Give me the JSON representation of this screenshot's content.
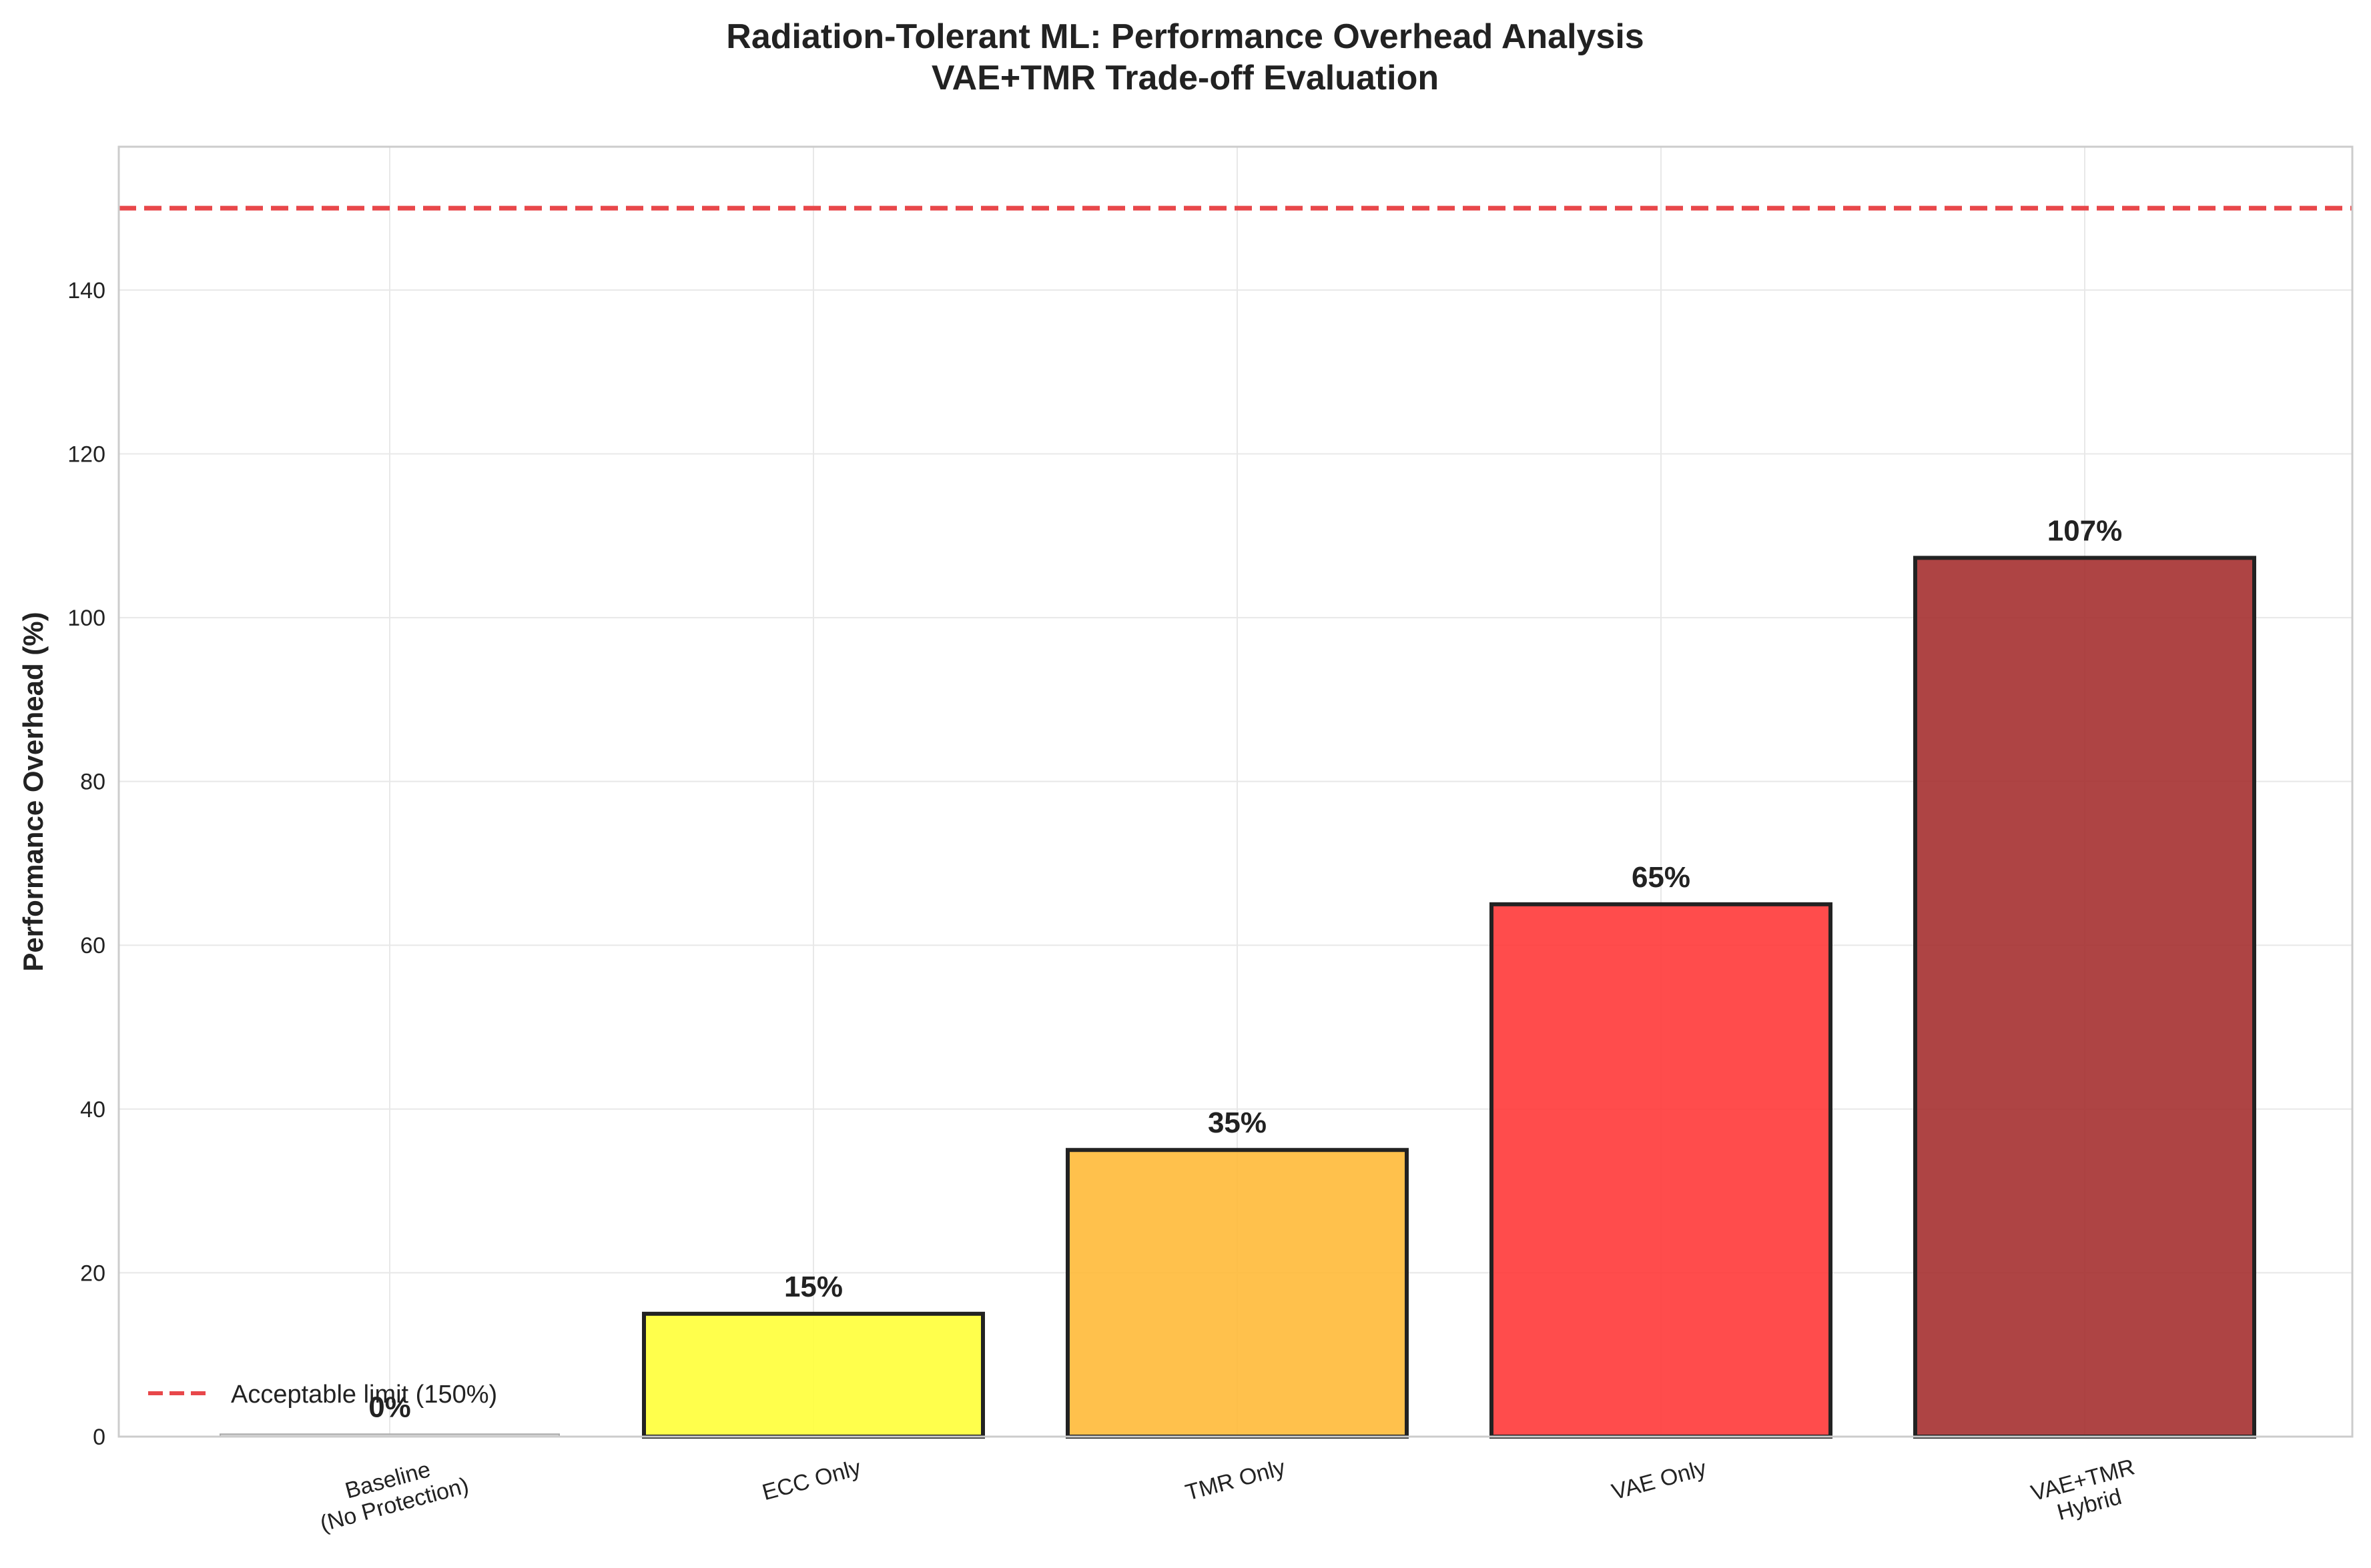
{
  "chart_data": {
    "type": "bar",
    "title": [
      "Radiation-Tolerant ML: Performance Overhead Analysis",
      "VAE+TMR Trade-off Evaluation"
    ],
    "xlabel": "",
    "ylabel": "Performance Overhead (%)",
    "ylim": [
      0,
      157.5
    ],
    "yticks": [
      0,
      20,
      40,
      60,
      80,
      100,
      120,
      140
    ],
    "grid": true,
    "categories": [
      [
        "Baseline",
        "(No Protection)"
      ],
      [
        "ECC Only"
      ],
      [
        "TMR Only"
      ],
      [
        "VAE Only"
      ],
      [
        "VAE+TMR",
        "Hybrid"
      ]
    ],
    "values": [
      0.3,
      15,
      35,
      65,
      107.3
    ],
    "value_labels": [
      "0%",
      "15%",
      "35%",
      "65%",
      "107%"
    ],
    "bar_colors": [
      "#d3d3d3",
      "#ffff33",
      "#ffb833",
      "#ff3333",
      "#a32a2a"
    ],
    "bar_edge_color": "#222222",
    "reference_line": {
      "y": 150,
      "color": "#e8474a",
      "style": "dashed",
      "label": "Acceptable limit (150%)"
    },
    "legend": {
      "placement": "lower-left",
      "entries": [
        "Acceptable limit (150%)"
      ]
    }
  }
}
